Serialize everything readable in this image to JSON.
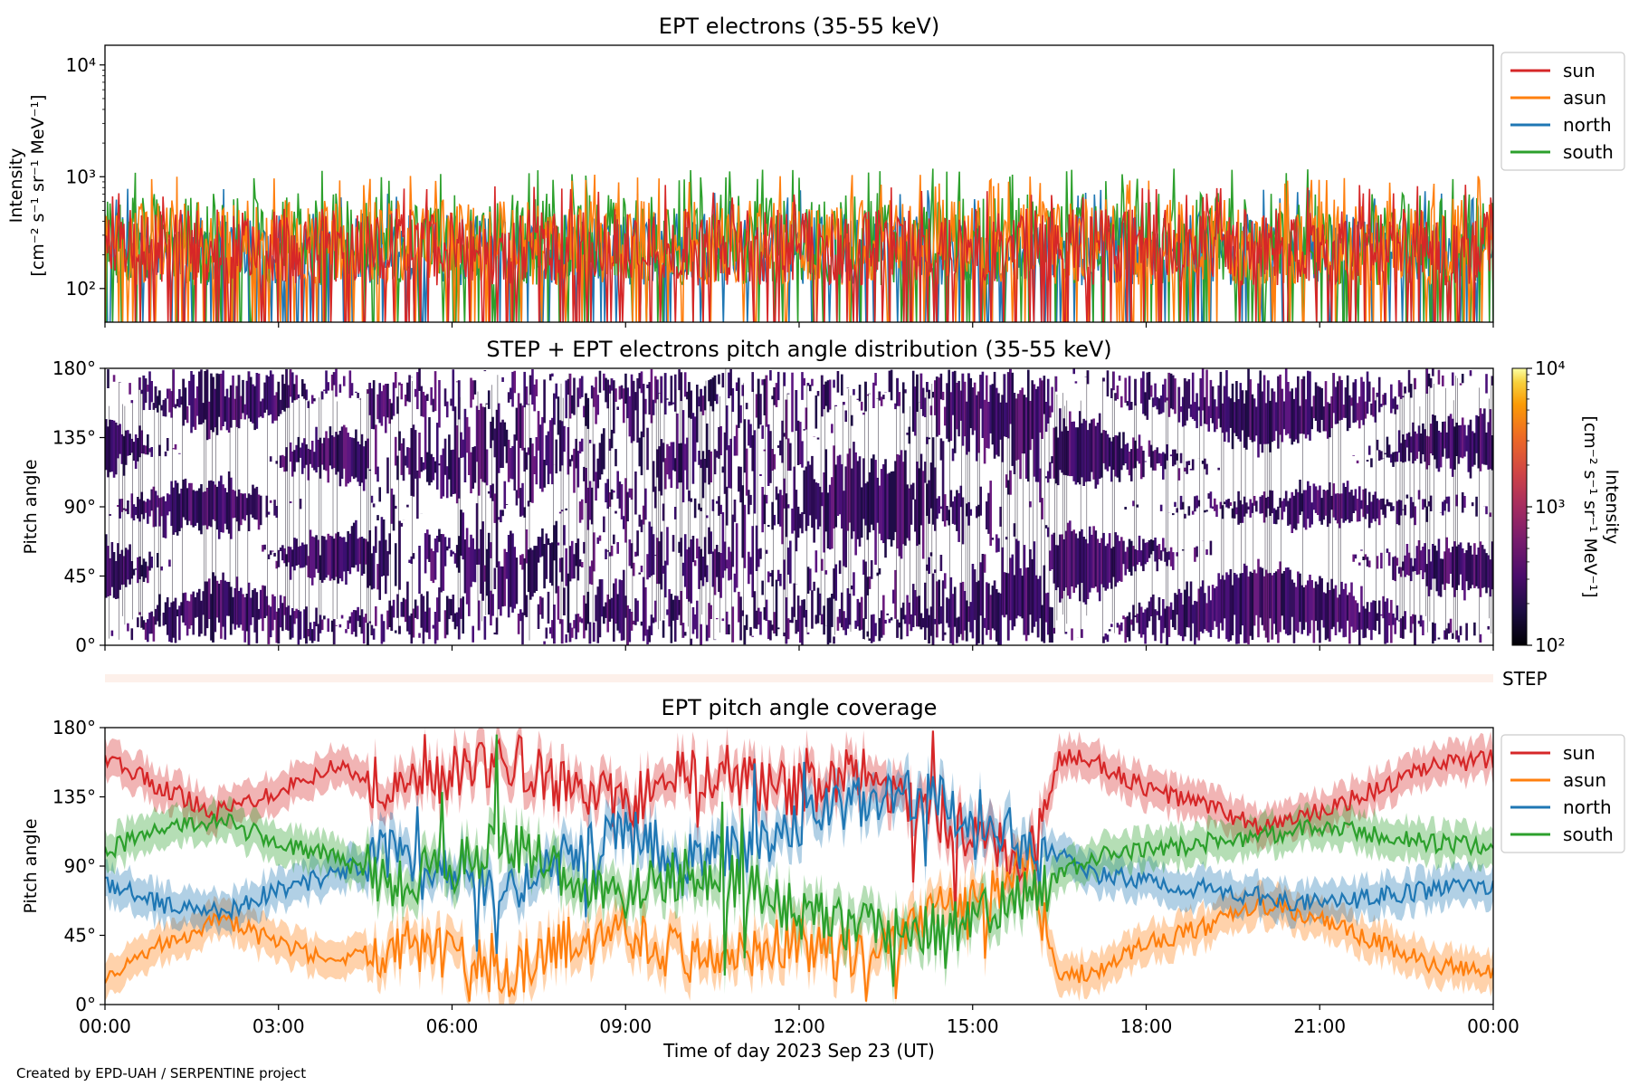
{
  "figure": {
    "credit": "Created by EPD-UAH / SERPENTINE project",
    "xlabel": "Time of day 2023 Sep 23 (UT)",
    "x_ticks": [
      "00:00",
      "03:00",
      "06:00",
      "09:00",
      "12:00",
      "15:00",
      "18:00",
      "21:00",
      "00:00"
    ],
    "x_range_hours": [
      0,
      24
    ]
  },
  "colors": {
    "sun": "#d62728",
    "asun": "#ff7f0e",
    "north": "#1f77b4",
    "south": "#2ca02c"
  },
  "chart_data": [
    {
      "type": "line",
      "title": "EPT electrons (35-55 keV)",
      "ylabel_line1": "Intensity",
      "ylabel_line2": "[cm⁻² s⁻¹ sr⁻¹ MeV⁻¹]",
      "yscale": "log",
      "ylim": [
        50,
        15000
      ],
      "y_ticks": [
        {
          "value": 100,
          "label": "10²"
        },
        {
          "value": 1000,
          "label": "10³"
        },
        {
          "value": 10000,
          "label": "10⁴"
        }
      ],
      "legend": [
        "sun",
        "asun",
        "north",
        "south"
      ],
      "legend_position": "outside-right-top",
      "series": [
        {
          "name": "sun",
          "typical_range": [
            60,
            650
          ]
        },
        {
          "name": "asun",
          "typical_range": [
            60,
            800
          ]
        },
        {
          "name": "north",
          "typical_range": [
            60,
            600
          ]
        },
        {
          "name": "south",
          "typical_range": [
            60,
            900
          ]
        }
      ]
    },
    {
      "type": "heatmap",
      "title": "STEP + EPT electrons pitch angle distribution (35-55 keV)",
      "ylabel": "Pitch angle",
      "ylim": [
        0,
        180
      ],
      "y_ticks": [
        "0°",
        "45°",
        "90°",
        "135°",
        "180°"
      ],
      "colorbar": {
        "label_line1": "Intensity",
        "label_line2": "[cm⁻² s⁻¹ sr⁻¹ MeV⁻¹]",
        "scale": "log",
        "range": [
          100,
          10000
        ],
        "tick_labels": [
          "10²",
          "10³",
          "10⁴"
        ],
        "colormap": "inferno"
      },
      "step_label": "STEP"
    },
    {
      "type": "line",
      "title": "EPT pitch angle coverage",
      "ylabel": "Pitch angle",
      "ylim": [
        0,
        180
      ],
      "y_ticks": [
        "0°",
        "45°",
        "90°",
        "135°",
        "180°"
      ],
      "legend": [
        "sun",
        "asun",
        "north",
        "south"
      ],
      "legend_position": "outside-right-top",
      "series": [
        {
          "name": "sun",
          "x": [
            0,
            1,
            2,
            3,
            4,
            5,
            6,
            7,
            8,
            9,
            10,
            11,
            12,
            13,
            14,
            15,
            16,
            16.5,
            17,
            18,
            19,
            20,
            21,
            22,
            23,
            24
          ],
          "values": [
            160,
            140,
            125,
            140,
            155,
            140,
            150,
            160,
            140,
            130,
            150,
            145,
            140,
            150,
            130,
            110,
            95,
            160,
            160,
            140,
            130,
            115,
            125,
            140,
            155,
            160
          ]
        },
        {
          "name": "asun",
          "x": [
            0,
            1,
            2,
            3,
            4,
            5,
            6,
            7,
            8,
            9,
            10,
            11,
            12,
            13,
            14,
            15,
            16,
            16.5,
            17,
            18,
            19,
            20,
            21,
            22,
            23,
            24
          ],
          "values": [
            20,
            40,
            55,
            40,
            25,
            40,
            30,
            20,
            40,
            50,
            30,
            35,
            40,
            30,
            50,
            70,
            85,
            20,
            20,
            40,
            50,
            65,
            55,
            40,
            25,
            20
          ]
        },
        {
          "name": "north",
          "x": [
            0,
            1,
            2,
            3,
            4,
            5,
            6,
            7,
            8,
            9,
            10,
            11,
            12,
            13,
            14,
            15,
            16,
            17,
            18,
            19,
            20,
            21,
            22,
            23,
            24
          ],
          "values": [
            80,
            65,
            60,
            75,
            85,
            100,
            90,
            75,
            95,
            110,
            95,
            100,
            120,
            130,
            135,
            125,
            110,
            85,
            80,
            75,
            70,
            65,
            70,
            75,
            78
          ]
        },
        {
          "name": "south",
          "x": [
            0,
            1,
            2,
            3,
            4,
            5,
            6,
            7,
            8,
            9,
            10,
            11,
            12,
            13,
            14,
            15,
            16,
            17,
            18,
            19,
            20,
            21,
            22,
            23,
            24
          ],
          "values": [
            100,
            115,
            120,
            105,
            95,
            80,
            90,
            105,
            85,
            70,
            85,
            80,
            60,
            50,
            45,
            55,
            70,
            95,
            100,
            105,
            110,
            115,
            110,
            105,
            102
          ]
        }
      ]
    }
  ]
}
